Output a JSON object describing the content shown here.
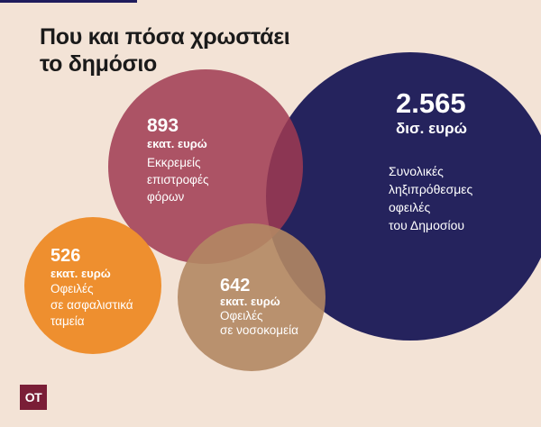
{
  "title": {
    "line1": "Που και πόσα χρωστάει",
    "line2": "το δημόσιο"
  },
  "bubbles": [
    {
      "id": "total",
      "value": "2.565",
      "unit": "δισ. ευρώ",
      "description": [
        "Συνολικές",
        "ληξιπρόθεσμες",
        "οφειλές",
        "του Δημοσίου"
      ],
      "color": "#25235d"
    },
    {
      "id": "tax_refunds",
      "value": "893",
      "unit": "εκατ. ευρώ",
      "description": [
        "Εκκρεμείς",
        "επιστροφές",
        "φόρων"
      ],
      "color": "#9f3a51"
    },
    {
      "id": "insurance",
      "value": "526",
      "unit": "εκατ. ευρώ",
      "description": [
        "Οφειλές",
        "σε ασφαλιστικά",
        "ταμεία"
      ],
      "color": "#ee8f2f"
    },
    {
      "id": "hospitals",
      "value": "642",
      "unit": "εκατ. ευρώ",
      "description": [
        "Οφειλές",
        "σε νοσοκομεία"
      ],
      "color": "#b28763"
    }
  ],
  "logo": {
    "text": "OT",
    "color": "#7a1e37"
  },
  "background_color": "#f3e3d6"
}
